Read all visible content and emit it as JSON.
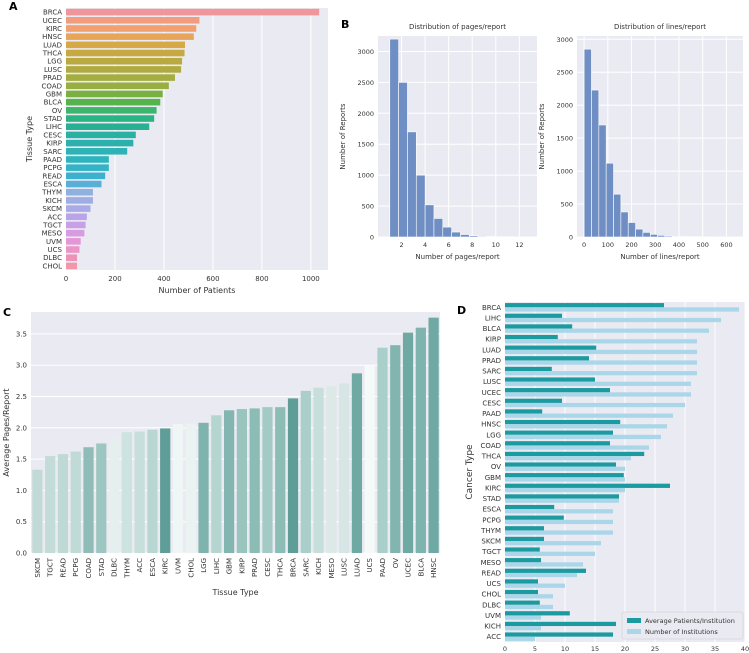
{
  "panels": {
    "A": "A",
    "B": "B",
    "C": "C",
    "D": "D"
  },
  "chart_data": [
    {
      "id": "A",
      "type": "bar",
      "orientation": "horizontal",
      "title": "",
      "xlabel": "Number of Patients",
      "ylabel": "Tissue Type",
      "xlim": [
        0,
        1070
      ],
      "xticks": [
        0,
        200,
        400,
        600,
        800,
        1000
      ],
      "categories": [
        "BRCA",
        "UCEC",
        "KIRC",
        "HNSC",
        "LUAD",
        "THCA",
        "LGG",
        "LUSC",
        "PRAD",
        "COAD",
        "GBM",
        "BLCA",
        "OV",
        "STAD",
        "LIHC",
        "CESC",
        "KIRP",
        "SARC",
        "PAAD",
        "PCPG",
        "READ",
        "ESCA",
        "THYM",
        "KICH",
        "SKCM",
        "ACC",
        "TGCT",
        "MESO",
        "UVM",
        "UCS",
        "DLBC",
        "CHOL"
      ],
      "values": [
        1034,
        545,
        532,
        522,
        486,
        484,
        474,
        470,
        445,
        420,
        395,
        385,
        370,
        360,
        340,
        285,
        275,
        250,
        175,
        175,
        160,
        145,
        110,
        110,
        100,
        85,
        80,
        75,
        60,
        55,
        45,
        45
      ],
      "colors": [
        "#f0959a",
        "#f39c7d",
        "#f1a06e",
        "#e8a559",
        "#d6a846",
        "#c6a941",
        "#b9a93f",
        "#b0ab40",
        "#a3ad40",
        "#98af3f",
        "#78b13f",
        "#54b34b",
        "#3db56c",
        "#2ab484",
        "#28b095",
        "#2bb1a2",
        "#2cb0ad",
        "#2db3b6",
        "#2db5be",
        "#33b4c6",
        "#3cb0cf",
        "#58b0d8",
        "#8fb1e0",
        "#9eade6",
        "#abaae9",
        "#b9a4ea",
        "#c8a0e8",
        "#d89be2",
        "#e596d6",
        "#eb94c6",
        "#ee93b6",
        "#f097a9"
      ]
    },
    {
      "id": "B1",
      "type": "bar",
      "title": "Distribution of pages/report",
      "xlabel": "Number of pages/report",
      "ylabel": "Number of Reports",
      "xlim": [
        0,
        13.5
      ],
      "ylim": [
        0,
        3250
      ],
      "xticks": [
        2,
        4,
        6,
        8,
        10,
        12
      ],
      "yticks": [
        0,
        500,
        1000,
        1500,
        2000,
        2500,
        3000
      ],
      "bins": [
        [
          1,
          1.75
        ],
        [
          1.75,
          2.5
        ],
        [
          2.5,
          3.25
        ],
        [
          3.25,
          4
        ],
        [
          4,
          4.75
        ],
        [
          4.75,
          5.5
        ],
        [
          5.5,
          6.25
        ],
        [
          6.25,
          7
        ],
        [
          7,
          7.75
        ],
        [
          7.75,
          8.5
        ],
        [
          8.5,
          9.25
        ],
        [
          9.25,
          10
        ],
        [
          10,
          10.75
        ],
        [
          10.75,
          11.5
        ],
        [
          11.5,
          12.25
        ]
      ],
      "values": [
        3200,
        2500,
        1700,
        1000,
        520,
        300,
        160,
        80,
        40,
        20,
        12,
        8,
        5,
        4,
        3
      ],
      "color": "#6f8fc4"
    },
    {
      "id": "B2",
      "type": "bar",
      "title": "Distribution of lines/report",
      "xlabel": "Number of lines/report",
      "ylabel": "Number of Reports",
      "xlim": [
        -30,
        670
      ],
      "ylim": [
        0,
        3050
      ],
      "xticks": [
        0,
        100,
        200,
        300,
        400,
        500,
        600
      ],
      "yticks": [
        0,
        500,
        1000,
        1500,
        2000,
        2500,
        3000
      ],
      "bins": [
        [
          0,
          31
        ],
        [
          31,
          62
        ],
        [
          62,
          93
        ],
        [
          93,
          124
        ],
        [
          124,
          155
        ],
        [
          155,
          186
        ],
        [
          186,
          217
        ],
        [
          217,
          248
        ],
        [
          248,
          279
        ],
        [
          279,
          310
        ],
        [
          310,
          341
        ],
        [
          341,
          372
        ],
        [
          372,
          403
        ],
        [
          403,
          434
        ],
        [
          434,
          465
        ],
        [
          465,
          496
        ],
        [
          496,
          527
        ],
        [
          527,
          558
        ],
        [
          558,
          589
        ],
        [
          589,
          620
        ]
      ],
      "values": [
        2850,
        2230,
        1700,
        1120,
        650,
        380,
        220,
        120,
        70,
        40,
        25,
        15,
        10,
        8,
        5,
        4,
        3,
        3,
        2,
        2
      ],
      "color": "#6f8fc4"
    },
    {
      "id": "C",
      "type": "bar",
      "title": "",
      "xlabel": "Tissue Type",
      "ylabel": "Average Pages/Report",
      "ylim": [
        0,
        3.85
      ],
      "yticks": [
        0.0,
        0.5,
        1.0,
        1.5,
        2.0,
        2.5,
        3.0,
        3.5
      ],
      "yticklabels": [
        "0.0",
        "0.5",
        "1.0",
        "1.5",
        "2.0",
        "2.5",
        "3.0",
        "3.5"
      ],
      "categories": [
        "SKCM",
        "TGCT",
        "READ",
        "PCPG",
        "COAD",
        "STAD",
        "DLBC",
        "THYM",
        "ACC",
        "ESCA",
        "KIRC",
        "UVM",
        "CHOL",
        "LGG",
        "LIHC",
        "GBM",
        "KIRP",
        "PRAD",
        "CESC",
        "THCA",
        "BRCA",
        "SARC",
        "KICH",
        "MESO",
        "LUSC",
        "LUAD",
        "UCS",
        "PAAD",
        "OV",
        "UCEC",
        "BLCA",
        "HNSC"
      ],
      "values": [
        1.33,
        1.55,
        1.58,
        1.62,
        1.69,
        1.75,
        1.85,
        1.93,
        1.94,
        1.97,
        1.99,
        2.06,
        2.07,
        2.08,
        2.2,
        2.28,
        2.3,
        2.31,
        2.33,
        2.33,
        2.47,
        2.59,
        2.64,
        2.67,
        2.71,
        2.87,
        2.99,
        3.28,
        3.32,
        3.52,
        3.6,
        3.76
      ],
      "colors": [
        "#c2dad6",
        "#c4dcd8",
        "#bfdad5",
        "#c0dad6",
        "#8fbcb6",
        "#9ec6c1",
        "#e4efee",
        "#cde3e0",
        "#c6dfdb",
        "#b8d7d2",
        "#5f9e98",
        "#f0f6f5",
        "#ebf3f2",
        "#7fb4ae",
        "#b5d5d0",
        "#83b6b0",
        "#9ac4be",
        "#8cbcb6",
        "#a3cac4",
        "#8cbcb6",
        "#5f9e98",
        "#aacfca",
        "#c6dfdb",
        "#dce9e7",
        "#d5e6e4",
        "#6ea9a3",
        "#f5f9f8",
        "#aacfca",
        "#82b5af",
        "#6ea9a3",
        "#7fb4ae",
        "#6ea9a3"
      ]
    },
    {
      "id": "D",
      "type": "bar",
      "orientation": "horizontal",
      "title": "",
      "xlabel": "",
      "ylabel": "Cancer Type",
      "xlim": [
        0,
        40
      ],
      "xticks": [
        0,
        5,
        10,
        15,
        20,
        25,
        30,
        35,
        40
      ],
      "categories": [
        "BRCA",
        "LIHC",
        "BLCA",
        "KIRP",
        "LUAD",
        "PRAD",
        "SARC",
        "LUSC",
        "UCEC",
        "CESC",
        "PAAD",
        "HNSC",
        "LGG",
        "COAD",
        "THCA",
        "OV",
        "GBM",
        "KIRC",
        "STAD",
        "ESCA",
        "PCPG",
        "THYM",
        "SKCM",
        "TGCT",
        "MESO",
        "READ",
        "UCS",
        "CHOL",
        "DLBC",
        "UVM",
        "KICH",
        "ACC"
      ],
      "series": [
        {
          "name": "Average Patients/Institution",
          "color": "#1b9aa0",
          "values": [
            26.5,
            9.5,
            11.2,
            8.8,
            15.2,
            14.0,
            7.8,
            15.0,
            17.5,
            9.5,
            6.2,
            19.2,
            18.0,
            17.5,
            23.2,
            18.5,
            19.8,
            27.5,
            19.0,
            8.2,
            9.8,
            6.5,
            6.5,
            5.8,
            6.0,
            13.5,
            5.5,
            5.5,
            5.8,
            10.8,
            18.5,
            18.0
          ]
        },
        {
          "name": "Number of Institutions",
          "color": "#a9d6e8",
          "values": [
            39.0,
            36.0,
            34.0,
            32.0,
            32.0,
            32.0,
            32.0,
            31.0,
            31.0,
            30.0,
            28.0,
            27.0,
            26.0,
            24.0,
            21.0,
            20.0,
            20.0,
            20.0,
            19.0,
            18.0,
            18.0,
            18.0,
            16.0,
            15.0,
            13.0,
            12.0,
            10.0,
            8.0,
            8.0,
            6.0,
            6.0,
            5.0
          ]
        }
      ]
    }
  ]
}
